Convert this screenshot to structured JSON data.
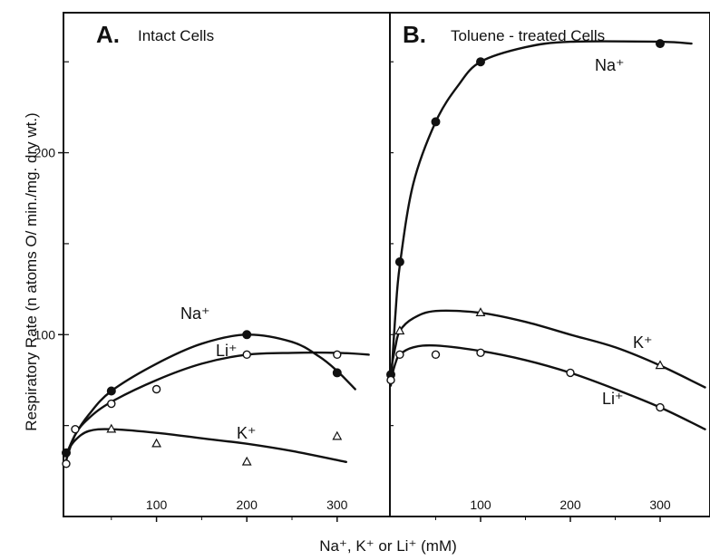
{
  "figure": {
    "ylabel": "Respiratory Rate (n atoms O/ min./mg. dry wt.)",
    "xlabel": "Na⁺, K⁺ or Li⁺ (mM)"
  },
  "chart_data": [
    {
      "type": "line",
      "panel": "A.",
      "title": "Intact Cells",
      "xlim": [
        0,
        335
      ],
      "ylim": [
        0,
        277
      ],
      "x_ticks": [
        100,
        200,
        300
      ],
      "y_ticks": [
        100,
        200
      ],
      "series": [
        {
          "name": "Na⁺",
          "marker": "filled-circle",
          "points": [
            [
              0,
              35
            ],
            [
              50,
              69
            ],
            [
              200,
              100
            ],
            [
              300,
              79
            ]
          ],
          "curve": [
            [
              0,
              34
            ],
            [
              10,
              45
            ],
            [
              25,
              56
            ],
            [
              50,
              69
            ],
            [
              100,
              84
            ],
            [
              150,
              95
            ],
            [
              200,
              100
            ],
            [
              250,
              96
            ],
            [
              280,
              88
            ],
            [
              300,
              80
            ],
            [
              320,
              70
            ]
          ]
        },
        {
          "name": "Li⁺",
          "marker": "open-circle",
          "points": [
            [
              0,
              29
            ],
            [
              10,
              48
            ],
            [
              50,
              62
            ],
            [
              100,
              70
            ],
            [
              200,
              89
            ],
            [
              300,
              89
            ]
          ],
          "curve": [
            [
              0,
              31
            ],
            [
              10,
              45
            ],
            [
              25,
              54
            ],
            [
              50,
              63
            ],
            [
              100,
              75
            ],
            [
              150,
              84
            ],
            [
              200,
              89
            ],
            [
              250,
              90
            ],
            [
              300,
              90
            ],
            [
              335,
              89
            ]
          ]
        },
        {
          "name": "K⁺",
          "marker": "open-triangle",
          "points": [
            [
              50,
              48
            ],
            [
              100,
              40
            ],
            [
              200,
              30
            ],
            [
              300,
              44
            ]
          ],
          "curve": [
            [
              0,
              35
            ],
            [
              10,
              42
            ],
            [
              25,
              47
            ],
            [
              50,
              48
            ],
            [
              100,
              46
            ],
            [
              150,
              43
            ],
            [
              200,
              40
            ],
            [
              250,
              36
            ],
            [
              310,
              30
            ]
          ]
        }
      ]
    },
    {
      "type": "line",
      "panel": "B.",
      "title": "Toluene - treated Cells",
      "xlim": [
        0,
        350
      ],
      "ylim": [
        0,
        277
      ],
      "x_ticks": [
        100,
        200,
        300
      ],
      "y_ticks": [],
      "series": [
        {
          "name": "Na⁺",
          "marker": "filled-circle",
          "points": [
            [
              0,
              78
            ],
            [
              10,
              140
            ],
            [
              50,
              217
            ],
            [
              100,
              250
            ],
            [
              300,
              260
            ]
          ],
          "curve": [
            [
              0,
              72
            ],
            [
              5,
              110
            ],
            [
              10,
              138
            ],
            [
              25,
              183
            ],
            [
              50,
              217
            ],
            [
              75,
              237
            ],
            [
              100,
              250
            ],
            [
              150,
              258
            ],
            [
              200,
              261
            ],
            [
              300,
              261
            ],
            [
              335,
              260
            ]
          ]
        },
        {
          "name": "K⁺",
          "marker": "open-triangle",
          "points": [
            [
              10,
              102
            ],
            [
              100,
              112
            ],
            [
              300,
              83
            ]
          ],
          "curve": [
            [
              0,
              80
            ],
            [
              5,
              93
            ],
            [
              10,
              102
            ],
            [
              25,
              109
            ],
            [
              50,
              113
            ],
            [
              100,
              112
            ],
            [
              150,
              107
            ],
            [
              200,
              100
            ],
            [
              250,
              93
            ],
            [
              300,
              83
            ],
            [
              350,
              71
            ]
          ]
        },
        {
          "name": "Li⁺",
          "marker": "open-circle",
          "points": [
            [
              0,
              75
            ],
            [
              10,
              89
            ],
            [
              50,
              89
            ],
            [
              100,
              90
            ],
            [
              200,
              79
            ],
            [
              300,
              60
            ]
          ],
          "curve": [
            [
              0,
              75
            ],
            [
              5,
              84
            ],
            [
              10,
              89
            ],
            [
              25,
              93
            ],
            [
              50,
              94
            ],
            [
              100,
              91
            ],
            [
              150,
              86
            ],
            [
              200,
              79
            ],
            [
              250,
              70
            ],
            [
              300,
              60
            ],
            [
              350,
              48
            ]
          ]
        }
      ]
    }
  ]
}
